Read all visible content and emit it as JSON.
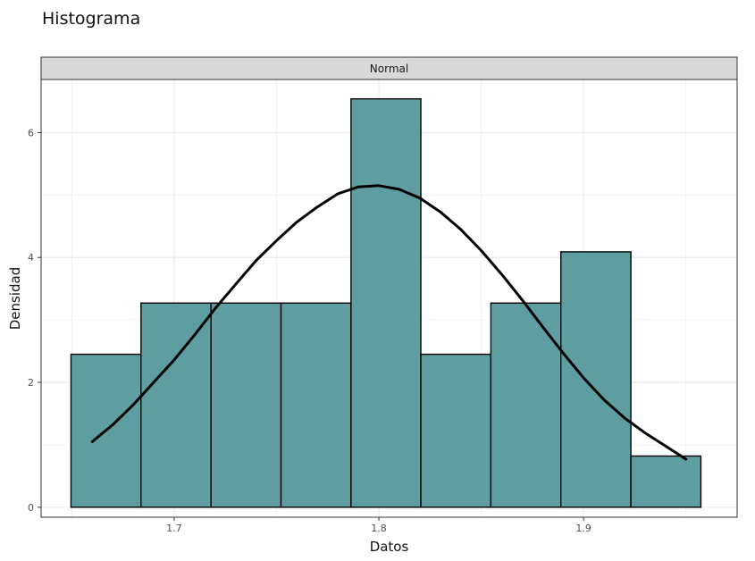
{
  "chart_data": {
    "type": "bar",
    "title": "Histograma",
    "facet": "Normal",
    "xlabel": "Datos",
    "ylabel": "Densidad",
    "xlim": [
      1.635,
      1.975
    ],
    "ylim": [
      -0.16,
      6.85
    ],
    "x_ticks": [
      1.7,
      1.8,
      1.9
    ],
    "x_tick_labels": [
      "1.7",
      "1.8",
      "1.9"
    ],
    "y_ticks": [
      0,
      2,
      4,
      6
    ],
    "y_tick_labels": [
      "0",
      "2",
      "4",
      "6"
    ],
    "grid": true,
    "bins": [
      {
        "x0": 1.6496,
        "x1": 1.6838,
        "value": 2.45
      },
      {
        "x0": 1.6838,
        "x1": 1.718,
        "value": 3.27
      },
      {
        "x0": 1.718,
        "x1": 1.7522,
        "value": 3.27
      },
      {
        "x0": 1.7522,
        "x1": 1.7864,
        "value": 3.27
      },
      {
        "x0": 1.7864,
        "x1": 1.8205,
        "value": 6.54
      },
      {
        "x0": 1.8205,
        "x1": 1.8547,
        "value": 2.45
      },
      {
        "x0": 1.8547,
        "x1": 1.8889,
        "value": 3.27
      },
      {
        "x0": 1.8889,
        "x1": 1.9231,
        "value": 4.09
      },
      {
        "x0": 1.9231,
        "x1": 1.9573,
        "value": 0.82
      }
    ],
    "density_curve": {
      "x": [
        1.66,
        1.67,
        1.68,
        1.69,
        1.7,
        1.71,
        1.72,
        1.73,
        1.74,
        1.75,
        1.76,
        1.77,
        1.78,
        1.79,
        1.8,
        1.81,
        1.82,
        1.83,
        1.84,
        1.85,
        1.86,
        1.87,
        1.88,
        1.89,
        1.9,
        1.91,
        1.92,
        1.93,
        1.94,
        1.95
      ],
      "y": [
        1.05,
        1.32,
        1.64,
        2.0,
        2.36,
        2.76,
        3.18,
        3.57,
        3.95,
        4.27,
        4.57,
        4.81,
        5.02,
        5.13,
        5.15,
        5.09,
        4.95,
        4.73,
        4.45,
        4.11,
        3.73,
        3.32,
        2.89,
        2.47,
        2.07,
        1.72,
        1.43,
        1.19,
        0.98,
        0.77
      ]
    },
    "colors": {
      "bar_fill": "#5f9ea0",
      "bar_stroke": "#000000",
      "curve": "#000000",
      "strip_fill": "#d9d9d9",
      "grid": "#ebebeb",
      "panel_border": "#333333"
    }
  }
}
